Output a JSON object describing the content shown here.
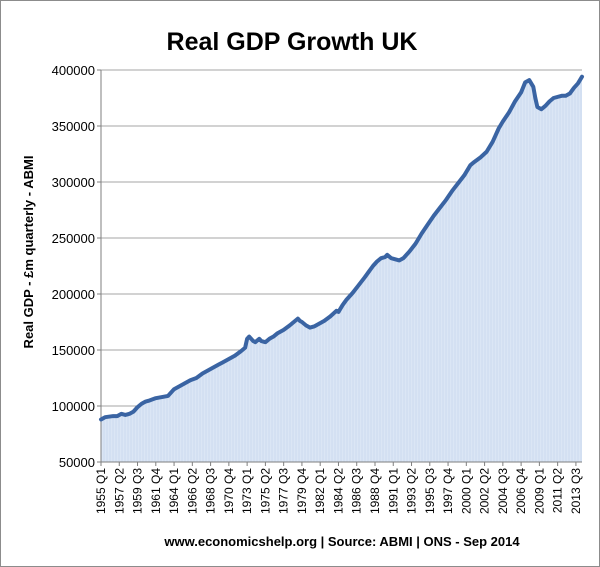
{
  "chart_data": {
    "type": "area",
    "title": "Real GDP Growth UK",
    "ylabel": "Real GDP - £m quarterly - ABMI",
    "xlabel": "",
    "source": "www.economicshelp.org | Source:  ABMI | ONS - Sep 2014",
    "ylim": [
      50000,
      400000
    ],
    "yticks": [
      50000,
      100000,
      150000,
      200000,
      250000,
      300000,
      350000,
      400000
    ],
    "ytick_labels": [
      "50000",
      "100000",
      "150000",
      "200000",
      "250000",
      "300000",
      "350000",
      "400000"
    ],
    "xlim": [
      1955.0,
      2014.25
    ],
    "xtick_labels": [
      "1955 Q1",
      "1957 Q2",
      "1959 Q3",
      "1961 Q4",
      "1964 Q1",
      "1966 Q2",
      "1968 Q3",
      "1970 Q4",
      "1973 Q1",
      "1975 Q2",
      "1977 Q3",
      "1979 Q4",
      "1982 Q1",
      "1984 Q2",
      "1986 Q3",
      "1988 Q4",
      "1991 Q1",
      "1993 Q2",
      "1995 Q3",
      "1997 Q4",
      "2000 Q1",
      "2002 Q2",
      "2004 Q3",
      "2006 Q4",
      "2009 Q1",
      "2011 Q2",
      "2013 Q3"
    ],
    "xtick_values": [
      1955.0,
      1957.25,
      1959.5,
      1961.75,
      1964.0,
      1966.25,
      1968.5,
      1970.75,
      1973.0,
      1975.25,
      1977.5,
      1979.75,
      1982.0,
      1984.25,
      1986.5,
      1988.75,
      1991.0,
      1993.25,
      1995.5,
      1997.75,
      2000.0,
      2002.25,
      2004.5,
      2006.75,
      2009.0,
      2011.25,
      2013.5
    ],
    "grid": true,
    "series": [
      {
        "color": "#3a64a3",
        "fill": "#dbe6f5",
        "x": [
          1955.0,
          1955.5,
          1956.5,
          1957.0,
          1957.5,
          1958.0,
          1958.5,
          1959.0,
          1959.5,
          1960.0,
          1960.5,
          1961.0,
          1961.75,
          1962.5,
          1963.25,
          1963.75,
          1964.0,
          1964.5,
          1965.25,
          1966.0,
          1966.75,
          1967.5,
          1968.25,
          1969.0,
          1969.5,
          1970.0,
          1970.75,
          1971.5,
          1972.25,
          1972.75,
          1973.0,
          1973.25,
          1973.75,
          1974.0,
          1974.5,
          1974.75,
          1975.25,
          1975.75,
          1976.25,
          1976.75,
          1977.5,
          1978.25,
          1978.75,
          1979.25,
          1979.5,
          1979.75,
          1980.25,
          1980.75,
          1981.25,
          1981.75,
          1982.5,
          1983.25,
          1984.0,
          1984.25,
          1984.75,
          1985.25,
          1986.0,
          1986.75,
          1987.5,
          1988.0,
          1988.5,
          1989.0,
          1989.5,
          1990.0,
          1990.25,
          1990.75,
          1991.25,
          1991.75,
          1992.25,
          1993.0,
          1993.75,
          1994.5,
          1995.25,
          1996.0,
          1996.75,
          1997.5,
          1998.25,
          1999.0,
          1999.75,
          2000.5,
          2001.0,
          2001.75,
          2002.5,
          2003.25,
          2004.0,
          2004.5,
          2005.25,
          2006.0,
          2006.75,
          2007.25,
          2007.75,
          2008.25,
          2008.5,
          2008.75,
          2009.25,
          2009.75,
          2010.25,
          2010.75,
          2011.25,
          2011.75,
          2012.25,
          2012.75,
          2013.25,
          2013.75,
          2014.25
        ],
        "y": [
          88000,
          90000,
          91000,
          91000,
          93000,
          92000,
          93000,
          95000,
          99000,
          102000,
          104000,
          105000,
          107000,
          108000,
          109000,
          113000,
          115000,
          117000,
          120000,
          123000,
          125000,
          129000,
          132000,
          135000,
          137000,
          139000,
          142000,
          145000,
          149000,
          152000,
          160000,
          162000,
          158000,
          157000,
          160000,
          158000,
          157000,
          160000,
          162000,
          165000,
          168000,
          172000,
          175000,
          178000,
          176000,
          175000,
          172000,
          170000,
          171000,
          173000,
          176000,
          180000,
          185000,
          184000,
          190000,
          195000,
          201000,
          208000,
          215000,
          220000,
          225000,
          229000,
          232000,
          233000,
          235000,
          232000,
          231000,
          230000,
          232000,
          238000,
          245000,
          254000,
          262000,
          270000,
          277000,
          284000,
          292000,
          299000,
          306000,
          315000,
          318000,
          322000,
          327000,
          336000,
          348000,
          354000,
          362000,
          372000,
          380000,
          389000,
          391000,
          385000,
          375000,
          367000,
          365000,
          368000,
          372000,
          375000,
          376000,
          377000,
          377000,
          379000,
          384000,
          388000,
          394000
        ]
      }
    ]
  }
}
